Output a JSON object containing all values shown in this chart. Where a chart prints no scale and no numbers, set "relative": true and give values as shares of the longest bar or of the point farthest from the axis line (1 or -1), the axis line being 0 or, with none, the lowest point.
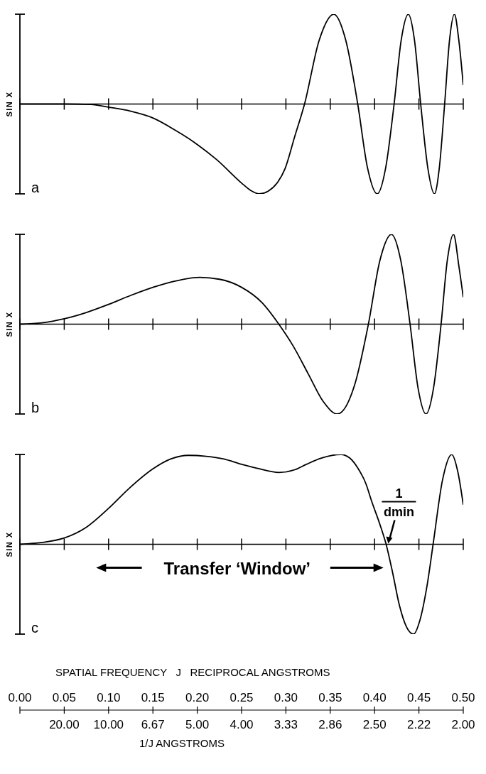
{
  "chart_data": [
    {
      "type": "line",
      "ylabel": "SIN X",
      "relative": true,
      "xlim": [
        0,
        0.5
      ],
      "xticks": [
        0,
        0.05,
        0.1,
        0.15,
        0.2,
        0.25,
        0.3,
        0.35,
        0.4,
        0.45,
        0.5
      ],
      "tick_labels": false,
      "annotations": [
        "a"
      ],
      "x": [
        0,
        0.05,
        0.08,
        0.1,
        0.125,
        0.15,
        0.175,
        0.2,
        0.222,
        0.25,
        0.26,
        0.27,
        0.28,
        0.29,
        0.299,
        0.31,
        0.321,
        0.3375,
        0.354,
        0.3675,
        0.381,
        0.392,
        0.403,
        0.4125,
        0.422,
        0.43,
        0.438,
        0.445,
        0.452,
        0.46,
        0.4675,
        0.473,
        0.479,
        0.4845,
        0.49,
        0.495,
        0.5
      ],
      "series": [
        {
          "color": "#000000",
          "values": [
            0,
            0,
            -0.005,
            -0.035,
            -0.08,
            -0.155,
            -0.29,
            -0.45,
            -0.62,
            -0.88,
            -0.96,
            -1,
            -0.97,
            -0.88,
            -0.72,
            -0.36,
            0,
            0.71,
            1,
            0.71,
            0,
            -0.71,
            -1,
            -0.71,
            0,
            0.71,
            1,
            0.71,
            0,
            -0.71,
            -1,
            -0.71,
            0,
            0.71,
            1,
            0.71,
            0.21
          ]
        }
      ]
    },
    {
      "type": "line",
      "ylabel": "SIN X",
      "relative": true,
      "xlim": [
        0,
        0.5
      ],
      "xticks": [
        0,
        0.05,
        0.1,
        0.15,
        0.2,
        0.25,
        0.3,
        0.35,
        0.4,
        0.45,
        0.5
      ],
      "tick_labels": false,
      "annotations": [
        "b"
      ],
      "x": [
        0,
        0.025,
        0.05,
        0.075,
        0.1,
        0.125,
        0.15,
        0.175,
        0.203,
        0.225,
        0.25,
        0.273,
        0.292,
        0.308,
        0.325,
        0.342,
        0.358,
        0.378,
        0.393,
        0.406,
        0.419,
        0.4295,
        0.44,
        0.449,
        0.458,
        0.4665,
        0.475,
        0.482,
        0.489,
        0.495,
        0.5
      ],
      "series": [
        {
          "color": "#000000",
          "values": [
            0,
            0.015,
            0.06,
            0.13,
            0.22,
            0.32,
            0.41,
            0.48,
            0.52,
            0.5,
            0.41,
            0.24,
            0,
            -0.24,
            -0.55,
            -0.86,
            -1,
            -0.66,
            0,
            0.71,
            1,
            0.71,
            0,
            -0.71,
            -1,
            -0.71,
            0,
            0.71,
            1,
            0.65,
            0.3
          ]
        }
      ]
    },
    {
      "type": "line",
      "ylabel": "SIN X",
      "relative": true,
      "xlabel": "SPATIAL FREQUENCY   J   RECIPROCAL ANGSTROMS",
      "xlim": [
        0,
        0.5
      ],
      "xticks": [
        {
          "value": 0,
          "label": "0.00"
        },
        {
          "value": 0.05,
          "label": "0.05"
        },
        {
          "value": 0.1,
          "label": "0.10"
        },
        {
          "value": 0.15,
          "label": "0.15"
        },
        {
          "value": 0.2,
          "label": "0.20"
        },
        {
          "value": 0.25,
          "label": "0.25"
        },
        {
          "value": 0.3,
          "label": "0.30"
        },
        {
          "value": 0.35,
          "label": "0.35"
        },
        {
          "value": 0.4,
          "label": "0.40"
        },
        {
          "value": 0.45,
          "label": "0.45"
        },
        {
          "value": 0.5,
          "label": "0.50"
        }
      ],
      "annotations": [
        "c",
        "Transfer ‘Window’",
        {
          "text": "1\ndmin",
          "x": 0.413,
          "y": 0
        },
        "1/J ANGSTROMS",
        "20.00",
        "10.00",
        "6.67",
        "5.00",
        "4.00",
        "3.33",
        "2.86",
        "2.50",
        "2.22",
        "2.00"
      ],
      "x": [
        0,
        0.025,
        0.05,
        0.075,
        0.1,
        0.124,
        0.15,
        0.17,
        0.19,
        0.21,
        0.23,
        0.25,
        0.27,
        0.292,
        0.31,
        0.323,
        0.34,
        0.362,
        0.372,
        0.381,
        0.39,
        0.397,
        0.405,
        0.413,
        0.42,
        0.428,
        0.436,
        0.444,
        0.451,
        0.459,
        0.466,
        0.4765,
        0.487,
        0.494,
        0.5
      ],
      "series": [
        {
          "color": "#000000",
          "values": [
            0,
            0.02,
            0.07,
            0.19,
            0.4,
            0.63,
            0.84,
            0.95,
            0.99,
            0.98,
            0.95,
            0.89,
            0.84,
            0.8,
            0.83,
            0.89,
            0.96,
            1,
            0.96,
            0.85,
            0.68,
            0.47,
            0.25,
            0,
            -0.3,
            -0.68,
            -0.92,
            -1,
            -0.85,
            -0.47,
            0,
            0.71,
            1,
            0.8,
            0.44
          ]
        }
      ]
    }
  ]
}
